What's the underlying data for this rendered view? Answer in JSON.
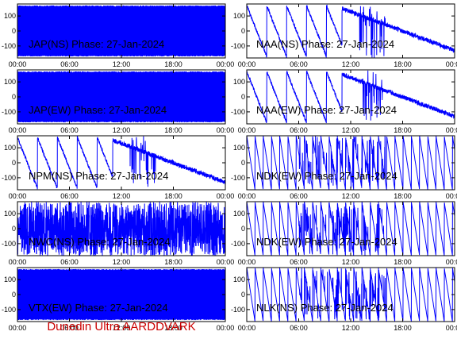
{
  "footer": "Dunedin Ultra AARDDVARK",
  "colors": {
    "trace": "#0000ff",
    "axes": "#000000",
    "footer": "#cc0000",
    "background": "#ffffff"
  },
  "chart_data": [
    {
      "type": "line",
      "title": "JAP(NS) Phase: 27-Jan-2024",
      "xlabels": [
        "00:00",
        "06:00",
        "12:00",
        "18:00",
        "00:00"
      ],
      "xlim": [
        0,
        24
      ],
      "ylim": [
        -180,
        180
      ],
      "yticks": [
        100,
        0,
        -100
      ],
      "style": "dense"
    },
    {
      "type": "line",
      "title": "NAA(NS) Phase: 27-Jan-2024",
      "xlabels": [
        "00:00",
        "06:00",
        "12:00",
        "18:00",
        "00:00"
      ],
      "xlim": [
        0,
        24
      ],
      "ylim": [
        -180,
        180
      ],
      "yticks": [
        100,
        0,
        -100
      ],
      "style": "ramps"
    },
    {
      "type": "line",
      "title": "JAP(EW) Phase: 27-Jan-2024",
      "xlabels": [
        "00:00",
        "06:00",
        "12:00",
        "18:00",
        "00:00"
      ],
      "xlim": [
        0,
        24
      ],
      "ylim": [
        -180,
        180
      ],
      "yticks": [
        100,
        0,
        -100
      ],
      "style": "dense"
    },
    {
      "type": "line",
      "title": "NAA(EW) Phase: 27-Jan-2024",
      "xlabels": [
        "00:00",
        "06:00",
        "12:00",
        "18:00",
        "00:00"
      ],
      "xlim": [
        0,
        24
      ],
      "ylim": [
        -180,
        180
      ],
      "yticks": [
        100,
        0,
        -100
      ],
      "style": "ramps"
    },
    {
      "type": "line",
      "title": "NPM(NS) Phase: 27-Jan-2024",
      "xlabels": [
        "00:00",
        "06:00",
        "12:00",
        "18:00",
        "00:00"
      ],
      "xlim": [
        0,
        24
      ],
      "ylim": [
        -180,
        180
      ],
      "yticks": [
        100,
        0,
        -100
      ],
      "style": "ramps"
    },
    {
      "type": "line",
      "title": "NDK(EW) Phase: 27-Jan-2024",
      "xlabels": [
        "00:00",
        "06:00",
        "12:00",
        "18:00",
        "00:00"
      ],
      "xlim": [
        0,
        24
      ],
      "ylim": [
        -180,
        180
      ],
      "yticks": [
        100,
        0,
        -100
      ],
      "style": "sawtooth"
    },
    {
      "type": "line",
      "title": "NWC(NS) Phase: 27-Jan-2024",
      "xlabels": [
        "00:00",
        "06:00",
        "12:00",
        "18:00",
        "00:00"
      ],
      "xlim": [
        0,
        24
      ],
      "ylim": [
        -180,
        180
      ],
      "yticks": [
        100,
        0,
        -100
      ],
      "style": "noisy"
    },
    {
      "type": "line",
      "title": "NDK(EW) Phase: 27-Jan-2024",
      "xlabels": [
        "00:00",
        "06:00",
        "12:00",
        "18:00",
        "00:00"
      ],
      "xlim": [
        0,
        24
      ],
      "ylim": [
        -180,
        180
      ],
      "yticks": [
        100,
        0,
        -100
      ],
      "style": "sawtooth"
    },
    {
      "type": "line",
      "title": "VTX(EW) Phase: 27-Jan-2024",
      "xlabels": [
        "00:00",
        "06:00",
        "12:00",
        "18:00",
        "00:00"
      ],
      "xlim": [
        0,
        24
      ],
      "ylim": [
        -180,
        180
      ],
      "yticks": [
        100,
        0,
        -100
      ],
      "style": "dense"
    },
    {
      "type": "line",
      "title": "NLK(NS) Phase: 27-Jan-2024",
      "xlabels": [
        "00:00",
        "06:00",
        "12:00",
        "18:00",
        "00:00"
      ],
      "xlim": [
        0,
        24
      ],
      "ylim": [
        -180,
        180
      ],
      "yticks": [
        100,
        0,
        -100
      ],
      "style": "sawtooth"
    }
  ]
}
